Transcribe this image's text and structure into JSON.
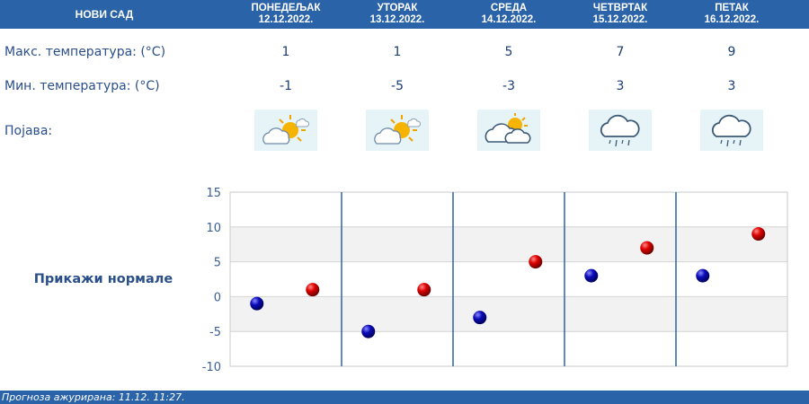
{
  "city": "НОВИ САД",
  "days": [
    {
      "name": "ПОНЕДЕЉАК",
      "date": "12.12.2022.",
      "max": "1",
      "min": "-1",
      "icon": "sun-behind-cloud-icon"
    },
    {
      "name": "УТОРАК",
      "date": "13.12.2022.",
      "max": "1",
      "min": "-5",
      "icon": "sun-behind-cloud-icon"
    },
    {
      "name": "СРЕДА",
      "date": "14.12.2022.",
      "max": "5",
      "min": "-3",
      "icon": "cloudy-with-sun-icon"
    },
    {
      "name": "ЧЕТВРТАК",
      "date": "15.12.2022.",
      "max": "7",
      "min": "3",
      "icon": "rain-cloud-icon"
    },
    {
      "name": "ПЕТАК",
      "date": "16.12.2022.",
      "max": "9",
      "min": "3",
      "icon": "rain-cloud-icon"
    }
  ],
  "labels": {
    "max_temp": "Макс. температура: (°C)",
    "min_temp": "Мин. температура: (°C)",
    "phenomenon": "Појава:",
    "show_normals": "Прикажи нормале"
  },
  "footer": "Прогноза ажурирана:  11.12.  11:27.",
  "colors": {
    "header_bg": "#2a63a8",
    "max_marker": "#cc0000",
    "min_marker": "#0a0aa8",
    "text_blue": "#2a4f8a"
  },
  "chart_data": {
    "type": "scatter",
    "categories": [
      "ПОНЕДЕЉАК",
      "УТОРАК",
      "СРЕДА",
      "ЧЕТВРТАК",
      "ПЕТАК"
    ],
    "series": [
      {
        "values": [
          -1,
          -5,
          -3,
          3,
          3
        ]
      },
      {
        "values": [
          1,
          1,
          5,
          7,
          9
        ]
      }
    ],
    "yticks": [
      15,
      10,
      5,
      0,
      -5,
      -10
    ],
    "ylim": [
      -10,
      15
    ],
    "grid": true,
    "legend": "none"
  }
}
